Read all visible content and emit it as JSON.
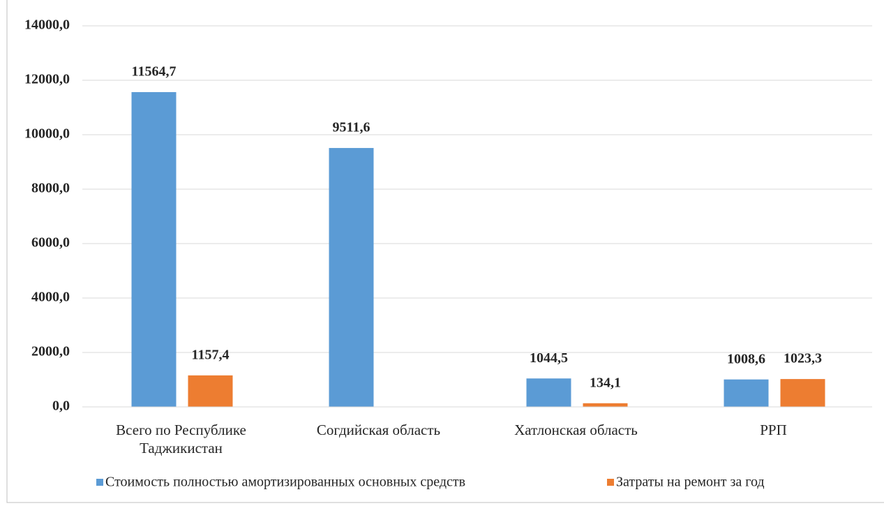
{
  "chart_data": {
    "type": "bar",
    "categories": [
      "Всего по Республике Таджикистан",
      "Согдийская область",
      "Хатлонская область",
      "РРП"
    ],
    "series": [
      {
        "name": "Стоимость полностью амортизированных основных средств",
        "color": "#5b9bd5",
        "values": [
          11564.7,
          9511.6,
          1044.5,
          1008.6
        ],
        "value_labels": [
          "11564,7",
          "9511,6",
          "1044,5",
          "1008,6"
        ]
      },
      {
        "name": "Затраты на ремонт за год",
        "color": "#ed7d31",
        "values": [
          1157.4,
          null,
          134.1,
          1023.3
        ],
        "value_labels": [
          "1157,4",
          null,
          "134,1",
          "1023,3"
        ]
      }
    ],
    "ylim": [
      0,
      14000
    ],
    "yticks": [
      {
        "value": 0,
        "label": "0,0"
      },
      {
        "value": 2000,
        "label": "2000,0"
      },
      {
        "value": 4000,
        "label": "4000,0"
      },
      {
        "value": 6000,
        "label": "6000,0"
      },
      {
        "value": 8000,
        "label": "8000,0"
      },
      {
        "value": 10000,
        "label": "10000,0"
      },
      {
        "value": 12000,
        "label": "12000,0"
      },
      {
        "value": 14000,
        "label": "14000,0"
      }
    ],
    "grid": true,
    "legend": "bottom"
  }
}
